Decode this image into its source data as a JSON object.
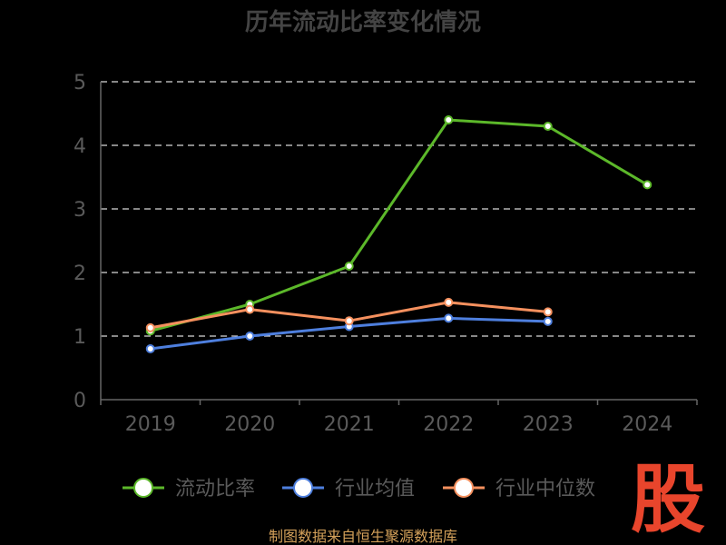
{
  "chart_data": {
    "type": "line",
    "title": "历年流动比率变化情况",
    "categories": [
      "2019",
      "2020",
      "2021",
      "2022",
      "2023",
      "2024"
    ],
    "ylim": [
      0,
      5
    ],
    "yticks": [
      "0",
      "1",
      "2",
      "3",
      "4",
      "5"
    ],
    "grid": true,
    "legend_position": "bottom",
    "series": [
      {
        "name": "流动比率",
        "color": "#5cb82a",
        "values": [
          1.08,
          1.5,
          2.1,
          4.4,
          4.3,
          3.38
        ]
      },
      {
        "name": "行业均值",
        "color": "#4e7fde",
        "values": [
          0.8,
          1.0,
          1.15,
          1.28,
          1.23,
          null
        ]
      },
      {
        "name": "行业中位数",
        "color": "#f5905e",
        "values": [
          1.13,
          1.42,
          1.24,
          1.53,
          1.38,
          null
        ]
      }
    ]
  },
  "source": "制图数据来自恒生聚源数据库",
  "watermark": "股"
}
